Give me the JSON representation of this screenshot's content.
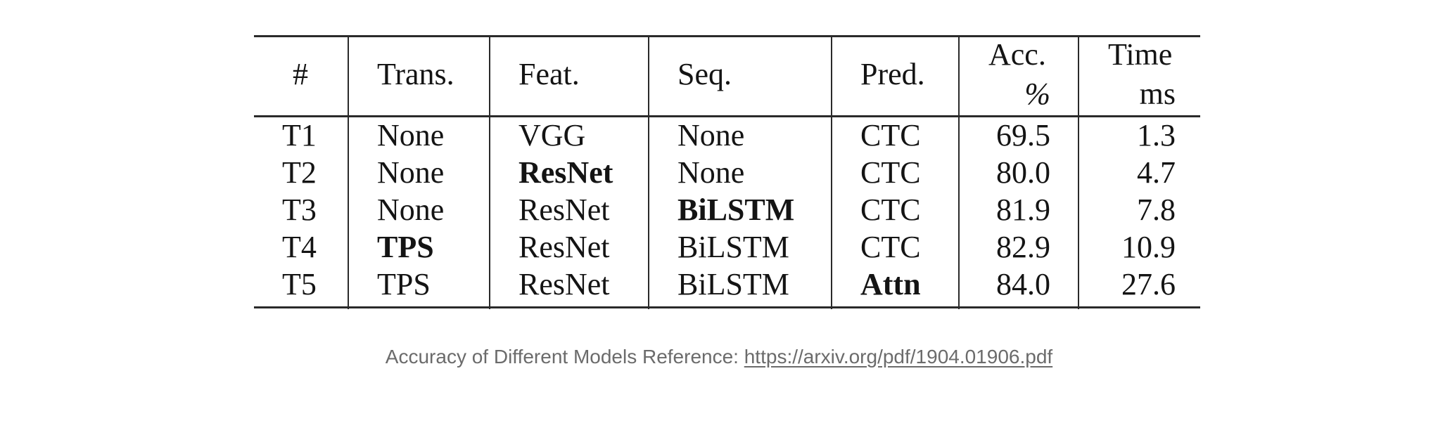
{
  "table": {
    "headers": {
      "num": "#",
      "trans": "Trans.",
      "feat": "Feat.",
      "seq": "Seq.",
      "pred": "Pred.",
      "acc": "Acc.",
      "acc_unit": "%",
      "time": "Time",
      "time_unit": "ms"
    },
    "rows": [
      {
        "id": "T1",
        "trans": "None",
        "feat": "VGG",
        "seq": "None",
        "pred": "CTC",
        "acc": "69.5",
        "time": "1.3"
      },
      {
        "id": "T2",
        "trans": "None",
        "feat": "ResNet",
        "seq": "None",
        "pred": "CTC",
        "acc": "80.0",
        "time": "4.7"
      },
      {
        "id": "T3",
        "trans": "None",
        "feat": "ResNet",
        "seq": "BiLSTM",
        "pred": "CTC",
        "acc": "81.9",
        "time": "7.8"
      },
      {
        "id": "T4",
        "trans": "TPS",
        "feat": "ResNet",
        "seq": "BiLSTM",
        "pred": "CTC",
        "acc": "82.9",
        "time": "10.9"
      },
      {
        "id": "T5",
        "trans": "TPS",
        "feat": "ResNet",
        "seq": "BiLSTM",
        "pred": "Attn",
        "acc": "84.0",
        "time": "27.6"
      }
    ],
    "bold_cells": [
      "T2.feat",
      "T3.seq",
      "T4.trans",
      "T5.pred"
    ]
  },
  "caption": {
    "text": "Accuracy of Different Models Reference: ",
    "link": "https://arxiv.org/pdf/1904.01906.pdf"
  }
}
